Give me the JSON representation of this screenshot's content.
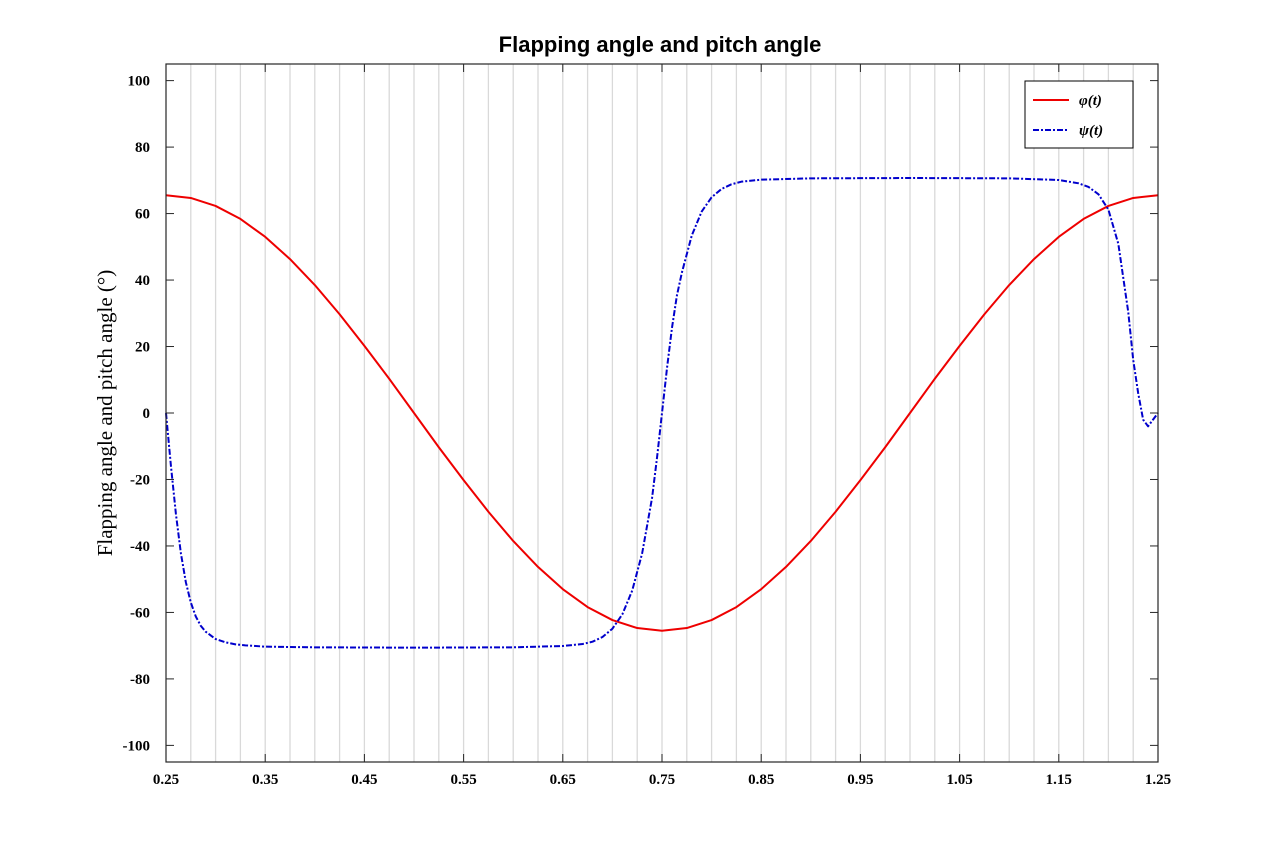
{
  "chart_data": {
    "type": "line",
    "title": "Flapping angle and pitch angle",
    "xlabel": "",
    "ylabel": "Flapping angle and pitch angle (°)",
    "xlim": [
      0.25,
      1.25
    ],
    "ylim": [
      -105,
      105
    ],
    "x_ticks": [
      "0.25",
      "0.35",
      "0.45",
      "0.55",
      "0.65",
      "0.75",
      "0.85",
      "0.95",
      "1.05",
      "1.15",
      "1.25"
    ],
    "y_ticks": [
      "100",
      "80",
      "60",
      "40",
      "20",
      "0",
      "-20",
      "-40",
      "-60",
      "-80",
      "-100"
    ],
    "x_tick_values": [
      0.25,
      0.35,
      0.45,
      0.55,
      0.65,
      0.75,
      0.85,
      0.95,
      1.05,
      1.15,
      1.25
    ],
    "y_tick_values": [
      100,
      80,
      60,
      40,
      20,
      0,
      -20,
      -40,
      -60,
      -80,
      -100
    ],
    "grid": "x",
    "grid_x_values": [
      0.25,
      0.275,
      0.3,
      0.325,
      0.35,
      0.375,
      0.4,
      0.425,
      0.45,
      0.475,
      0.5,
      0.525,
      0.55,
      0.575,
      0.6,
      0.625,
      0.65,
      0.675,
      0.7,
      0.725,
      0.75,
      0.775,
      0.8,
      0.825,
      0.85,
      0.875,
      0.9,
      0.925,
      0.95,
      0.975,
      1.0,
      1.025,
      1.05,
      1.075,
      1.1,
      1.125,
      1.15,
      1.175,
      1.2,
      1.225,
      1.25
    ],
    "legend_position": "top-right",
    "series": [
      {
        "name": "φ(t)",
        "color": "#ee0000",
        "style": "solid",
        "x": [
          0.25,
          0.275,
          0.3,
          0.325,
          0.35,
          0.375,
          0.4,
          0.425,
          0.45,
          0.475,
          0.5,
          0.525,
          0.55,
          0.575,
          0.6,
          0.625,
          0.65,
          0.675,
          0.7,
          0.725,
          0.75,
          0.775,
          0.8,
          0.825,
          0.85,
          0.875,
          0.9,
          0.925,
          0.95,
          0.975,
          1.0,
          1.025,
          1.05,
          1.075,
          1.1,
          1.125,
          1.15,
          1.175,
          1.2,
          1.225,
          1.25
        ],
        "y": [
          65.5,
          64.7,
          62.3,
          58.4,
          53.0,
          46.3,
          38.5,
          29.7,
          20.2,
          10.3,
          0.0,
          -10.3,
          -20.2,
          -29.7,
          -38.5,
          -46.3,
          -53.0,
          -58.4,
          -62.3,
          -64.7,
          -65.5,
          -64.7,
          -62.3,
          -58.4,
          -53.0,
          -46.3,
          -38.5,
          -29.7,
          -20.2,
          -10.3,
          0.0,
          10.3,
          20.2,
          29.7,
          38.5,
          46.3,
          53.0,
          58.4,
          62.3,
          64.7,
          65.5
        ]
      },
      {
        "name": "ψ(t)",
        "color": "#0000cc",
        "style": "dashdot",
        "x": [
          0.25,
          0.255,
          0.26,
          0.265,
          0.27,
          0.275,
          0.28,
          0.285,
          0.29,
          0.3,
          0.31,
          0.32,
          0.33,
          0.35,
          0.4,
          0.5,
          0.6,
          0.65,
          0.67,
          0.68,
          0.69,
          0.7,
          0.71,
          0.72,
          0.73,
          0.74,
          0.745,
          0.75,
          0.755,
          0.76,
          0.765,
          0.77,
          0.78,
          0.79,
          0.8,
          0.81,
          0.82,
          0.83,
          0.85,
          0.9,
          1.0,
          1.1,
          1.15,
          1.17,
          1.18,
          1.19,
          1.2,
          1.21,
          1.22,
          1.225,
          1.23,
          1.235,
          1.24,
          1.245,
          1.25
        ],
        "y": [
          0.0,
          -16.0,
          -30.4,
          -42.2,
          -50.9,
          -57.0,
          -61.2,
          -64.0,
          -65.8,
          -68.0,
          -69.0,
          -69.6,
          -69.9,
          -70.3,
          -70.5,
          -70.6,
          -70.5,
          -70.1,
          -69.5,
          -68.8,
          -67.4,
          -64.9,
          -60.6,
          -53.4,
          -42.2,
          -25.5,
          -13.4,
          0.0,
          13.4,
          25.5,
          35.3,
          42.2,
          53.4,
          60.6,
          64.9,
          67.4,
          68.8,
          69.6,
          70.2,
          70.6,
          70.7,
          70.6,
          70.1,
          69.1,
          68.0,
          65.8,
          61.2,
          50.9,
          30.4,
          16.0,
          6.0,
          -2.0,
          -4.0,
          -2.0,
          0.0
        ]
      }
    ]
  }
}
